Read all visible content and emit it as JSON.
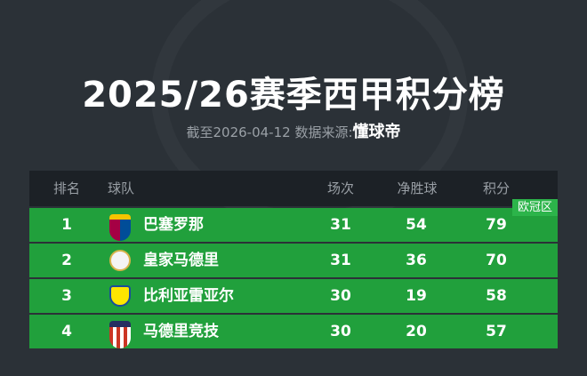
{
  "title": "2025/26赛季西甲积分榜",
  "subtitle": {
    "prefix": "截至2026-04-12 数据来源:",
    "source": "懂球帝"
  },
  "headers": {
    "rank": "排名",
    "team": "球队",
    "played": "场次",
    "goal_diff": "净胜球",
    "points": "积分"
  },
  "zone_badge": "欧冠区",
  "colors": {
    "row": "#21a03c",
    "header": "#1c2126",
    "background": "#2b3137"
  },
  "rows": [
    {
      "rank": "1",
      "team": "巴塞罗那",
      "played": "31",
      "goal_diff": "54",
      "points": "79",
      "logo": "barcelona-crest"
    },
    {
      "rank": "2",
      "team": "皇家马德里",
      "played": "31",
      "goal_diff": "36",
      "points": "70",
      "logo": "real-madrid-crest"
    },
    {
      "rank": "3",
      "team": "比利亚雷亚尔",
      "played": "30",
      "goal_diff": "19",
      "points": "58",
      "logo": "villarreal-crest"
    },
    {
      "rank": "4",
      "team": "马德里竞技",
      "played": "30",
      "goal_diff": "20",
      "points": "57",
      "logo": "atletico-crest"
    }
  ]
}
